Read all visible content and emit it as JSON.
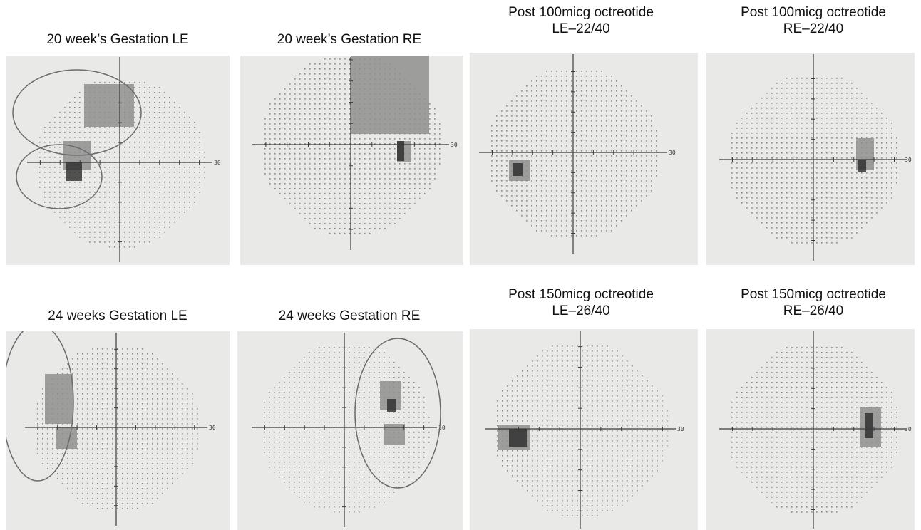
{
  "figure": {
    "panels": [
      {
        "caption": "20 week’s Gestation LE",
        "scale_label": "30"
      },
      {
        "caption": "20 week’s Gestation RE",
        "scale_label": "30"
      },
      {
        "caption": "Post 100micg octreotide\nLE–22/40",
        "scale_label": "30"
      },
      {
        "caption": "Post 100micg octreotide\nRE–22/40",
        "scale_label": "30"
      },
      {
        "caption": "24 weeks Gestation LE",
        "scale_label": "30"
      },
      {
        "caption": "24 weeks Gestation RE",
        "scale_label": "30"
      },
      {
        "caption": "Post 150micg octreotide\nLE–26/40",
        "scale_label": "30"
      },
      {
        "caption": "Post 150micg octreotide\nRE–26/40",
        "scale_label": "30"
      }
    ]
  },
  "colors": {
    "paper": "#e9e9e7",
    "dots": "#8a8a88",
    "axis": "#3a3a3a",
    "defect": "#8f8f8d",
    "dense": "#2a2a2a",
    "pen": "#6b6b70"
  }
}
